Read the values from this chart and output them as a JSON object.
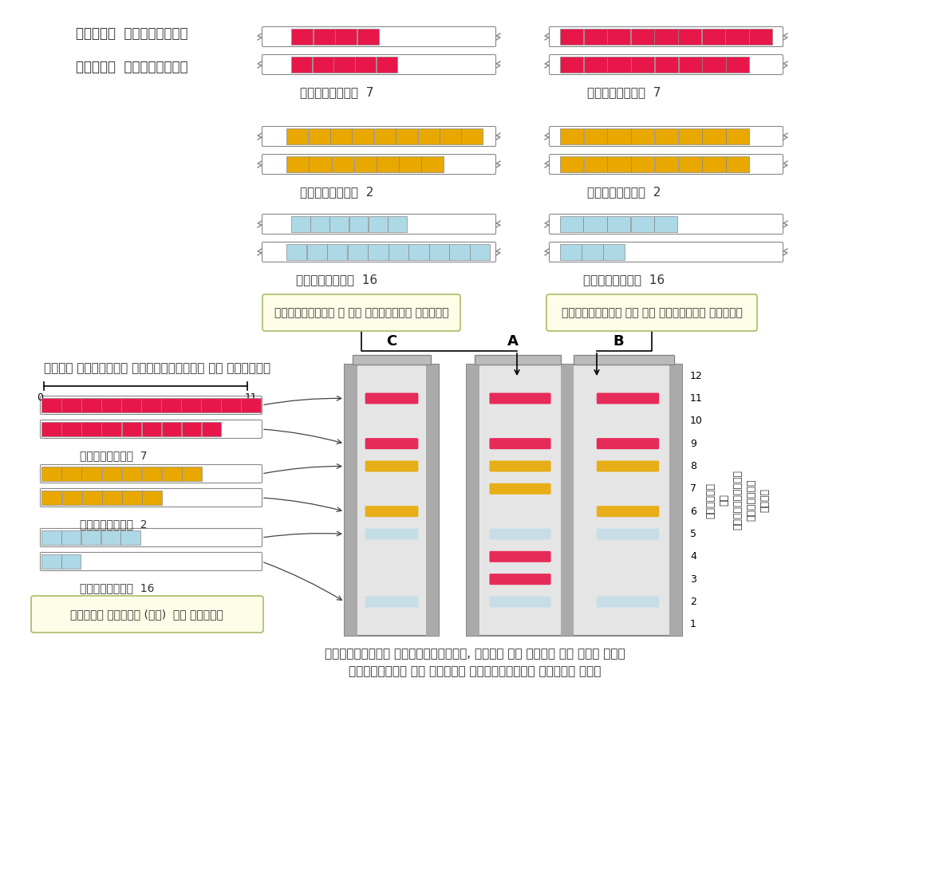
{
  "bg_color": "#ffffff",
  "red_color": "#E8174A",
  "gold_color": "#E8A800",
  "blue_color": "#ADD8E6",
  "label_color": "#333333",
  "hindi_paternal": "पैतृक  गुणसूत्र",
  "hindi_maternal": "मातृक  गुणसूत्र",
  "hindi_gunsootra": "गुणसूत्र",
  "hindi_vyaktigat_A": "व्यक्तिगत ए से प्राप्त डीएनए",
  "hindi_vyaktigat_B": "व्यक्तिगत बी से प्राप्त डीएनए",
  "hindi_chote": "छोटे अनुबद्ध पुनरावर्तक की संख्या",
  "hindi_apradh": "अपराध दृश्य (सी)  से डीएनए",
  "hindi_pravardhat": "प्रवर्धित पुनरावृत्त, आकार के आधार पर जेल में",
  "hindi_prithak": "पृथक्कृत जो डीएनए अंगुलिछाप बनाते है।",
  "hindi_right_label": "संख्या\nकी\nपुनरावर्तक\nअनुबद्ध\nछोटे"
}
